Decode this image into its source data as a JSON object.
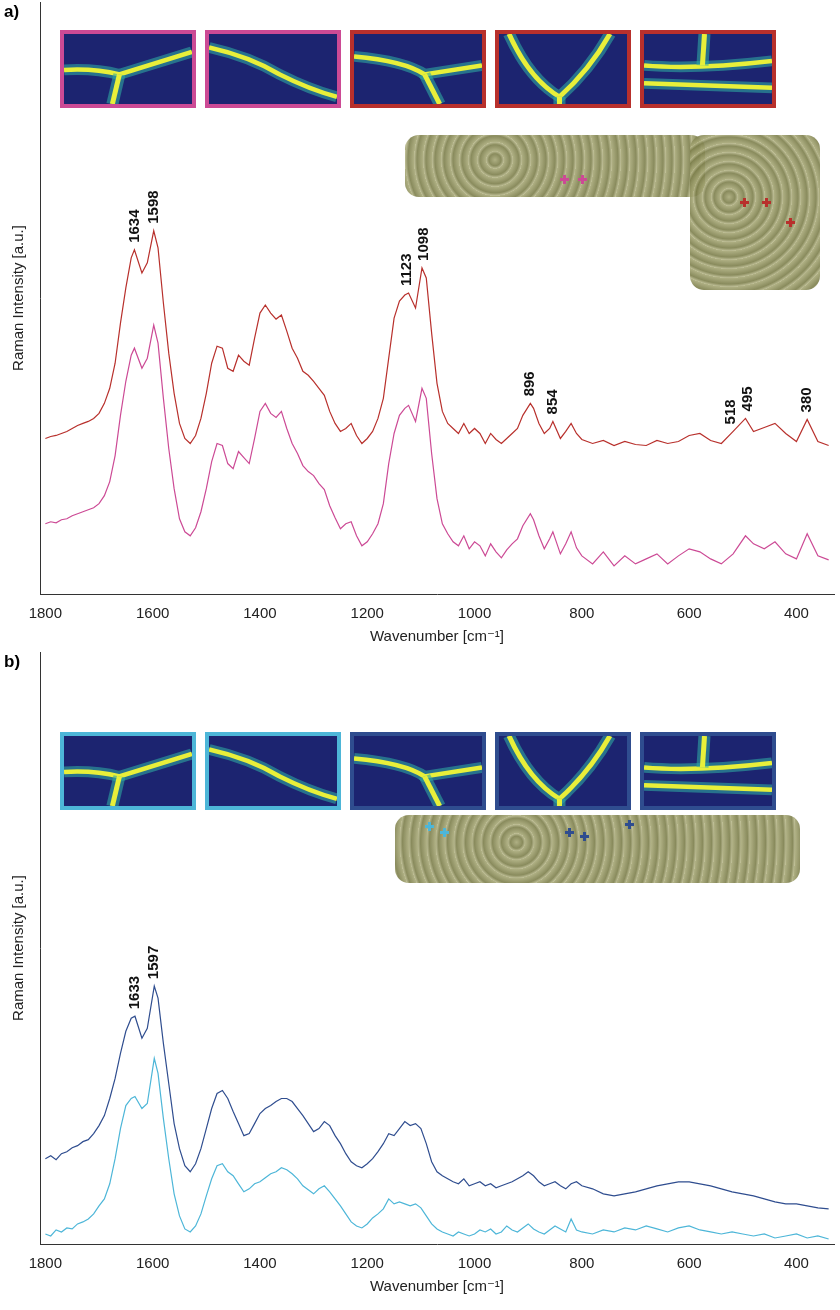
{
  "chart_data": [
    {
      "panel": "a)",
      "type": "line",
      "x_label": "Wavenumber [cm⁻¹]",
      "y_label": "Raman Intensity [a.u.]",
      "xlim": [
        1810,
        330
      ],
      "xticks": [
        1800,
        1600,
        1400,
        1200,
        1000,
        800,
        600,
        400
      ],
      "ylim": [
        0,
        590
      ],
      "tick_labels": "x",
      "grid": false,
      "annotations": [
        1634,
        1598,
        1123,
        1098,
        896,
        854,
        518,
        495,
        380
      ],
      "x": [
        1800,
        1790,
        1780,
        1770,
        1760,
        1750,
        1740,
        1730,
        1720,
        1710,
        1700,
        1690,
        1680,
        1670,
        1660,
        1650,
        1640,
        1634,
        1620,
        1610,
        1598,
        1590,
        1580,
        1570,
        1560,
        1550,
        1540,
        1530,
        1520,
        1510,
        1500,
        1490,
        1480,
        1470,
        1460,
        1450,
        1440,
        1430,
        1420,
        1410,
        1400,
        1390,
        1380,
        1370,
        1360,
        1350,
        1340,
        1330,
        1320,
        1310,
        1300,
        1290,
        1280,
        1270,
        1260,
        1250,
        1240,
        1230,
        1220,
        1210,
        1200,
        1190,
        1180,
        1170,
        1160,
        1150,
        1140,
        1130,
        1123,
        1110,
        1098,
        1090,
        1080,
        1070,
        1060,
        1050,
        1040,
        1030,
        1020,
        1010,
        1000,
        990,
        980,
        970,
        960,
        950,
        940,
        930,
        920,
        910,
        896,
        890,
        880,
        870,
        860,
        854,
        840,
        830,
        820,
        810,
        800,
        780,
        760,
        740,
        720,
        700,
        680,
        660,
        640,
        620,
        600,
        580,
        560,
        540,
        518,
        495,
        480,
        460,
        440,
        420,
        400,
        380,
        360,
        340
      ],
      "series": [
        {
          "color": "#b8302c",
          "values": [
            155,
            157,
            158,
            160,
            162,
            165,
            168,
            170,
            172,
            175,
            180,
            190,
            205,
            230,
            270,
            305,
            335,
            343,
            320,
            330,
            362,
            345,
            290,
            240,
            200,
            170,
            155,
            150,
            158,
            175,
            200,
            230,
            247,
            245,
            225,
            222,
            238,
            232,
            228,
            255,
            280,
            288,
            280,
            274,
            278,
            262,
            245,
            235,
            222,
            218,
            212,
            205,
            198,
            182,
            170,
            162,
            165,
            170,
            158,
            150,
            155,
            162,
            175,
            195,
            235,
            275,
            292,
            298,
            300,
            285,
            325,
            315,
            260,
            210,
            182,
            170,
            165,
            160,
            170,
            160,
            165,
            160,
            150,
            160,
            154,
            150,
            155,
            160,
            165,
            178,
            190,
            185,
            170,
            160,
            165,
            172,
            155,
            162,
            170,
            160,
            154,
            150,
            153,
            148,
            152,
            149,
            148,
            153,
            150,
            152,
            158,
            160,
            153,
            150,
            162,
            175,
            162,
            166,
            170,
            160,
            152,
            174,
            152,
            148
          ]
        },
        {
          "color": "#cc4a95",
          "values": [
            70,
            72,
            71,
            74,
            75,
            78,
            80,
            82,
            84,
            86,
            90,
            98,
            112,
            138,
            178,
            212,
            238,
            245,
            225,
            235,
            268,
            250,
            195,
            145,
            105,
            75,
            62,
            58,
            66,
            82,
            105,
            132,
            150,
            148,
            130,
            125,
            142,
            136,
            130,
            155,
            182,
            190,
            180,
            176,
            182,
            165,
            150,
            140,
            128,
            122,
            118,
            110,
            104,
            88,
            76,
            65,
            70,
            72,
            58,
            48,
            52,
            60,
            70,
            90,
            130,
            160,
            178,
            185,
            188,
            172,
            205,
            195,
            140,
            95,
            70,
            60,
            52,
            48,
            58,
            45,
            52,
            48,
            38,
            50,
            42,
            36,
            44,
            50,
            55,
            68,
            80,
            74,
            58,
            45,
            55,
            62,
            40,
            50,
            62,
            46,
            38,
            30,
            42,
            28,
            38,
            30,
            35,
            40,
            30,
            38,
            45,
            42,
            35,
            30,
            40,
            58,
            50,
            45,
            52,
            40,
            35,
            60,
            38,
            34
          ]
        }
      ]
    },
    {
      "panel": "b)",
      "type": "line",
      "x_label": "Wavenumber [cm⁻¹]",
      "y_label": "Raman Intensity [a.u.]",
      "xlim": [
        1810,
        330
      ],
      "xticks": [
        1800,
        1600,
        1400,
        1200,
        1000,
        800,
        600,
        400
      ],
      "ylim": [
        0,
        590
      ],
      "tick_labels": "x",
      "grid": false,
      "annotations": [
        1633,
        1597
      ],
      "x": [
        1800,
        1790,
        1780,
        1770,
        1760,
        1750,
        1740,
        1730,
        1720,
        1710,
        1700,
        1690,
        1680,
        1670,
        1660,
        1650,
        1640,
        1633,
        1620,
        1610,
        1597,
        1590,
        1580,
        1570,
        1560,
        1550,
        1540,
        1530,
        1520,
        1510,
        1500,
        1490,
        1480,
        1470,
        1460,
        1450,
        1440,
        1430,
        1420,
        1410,
        1400,
        1390,
        1380,
        1370,
        1360,
        1350,
        1340,
        1330,
        1320,
        1310,
        1300,
        1290,
        1280,
        1270,
        1260,
        1250,
        1240,
        1230,
        1220,
        1210,
        1200,
        1190,
        1180,
        1170,
        1160,
        1150,
        1140,
        1130,
        1120,
        1110,
        1100,
        1090,
        1080,
        1070,
        1060,
        1050,
        1040,
        1030,
        1020,
        1010,
        1000,
        990,
        980,
        970,
        960,
        950,
        940,
        930,
        920,
        910,
        900,
        890,
        880,
        870,
        860,
        850,
        840,
        830,
        820,
        810,
        800,
        780,
        760,
        740,
        720,
        700,
        680,
        660,
        640,
        620,
        600,
        580,
        560,
        540,
        520,
        500,
        480,
        460,
        440,
        420,
        400,
        380,
        360,
        340
      ],
      "series": [
        {
          "color": "#2f4d8f",
          "values": [
            85,
            88,
            84,
            90,
            92,
            96,
            98,
            102,
            104,
            110,
            118,
            128,
            145,
            165,
            190,
            212,
            225,
            227,
            205,
            215,
            257,
            245,
            200,
            160,
            120,
            95,
            78,
            72,
            80,
            95,
            115,
            135,
            150,
            153,
            145,
            132,
            120,
            108,
            110,
            120,
            130,
            135,
            138,
            142,
            145,
            145,
            142,
            135,
            128,
            120,
            112,
            115,
            122,
            118,
            108,
            100,
            90,
            82,
            78,
            76,
            80,
            85,
            92,
            100,
            110,
            108,
            115,
            122,
            118,
            120,
            115,
            100,
            82,
            72,
            68,
            65,
            62,
            60,
            65,
            58,
            60,
            62,
            58,
            60,
            56,
            58,
            60,
            62,
            65,
            68,
            72,
            68,
            62,
            58,
            60,
            62,
            58,
            55,
            60,
            62,
            58,
            55,
            50,
            48,
            50,
            52,
            55,
            58,
            60,
            62,
            62,
            60,
            58,
            55,
            52,
            50,
            48,
            45,
            42,
            40,
            40,
            38,
            36,
            35
          ]
        },
        {
          "color": "#4db6d8",
          "values": [
            10,
            8,
            14,
            12,
            16,
            15,
            20,
            22,
            25,
            30,
            38,
            45,
            60,
            85,
            115,
            138,
            145,
            147,
            135,
            140,
            185,
            170,
            125,
            85,
            50,
            28,
            15,
            12,
            18,
            30,
            48,
            65,
            78,
            80,
            72,
            68,
            60,
            52,
            55,
            60,
            62,
            66,
            70,
            72,
            76,
            74,
            70,
            65,
            58,
            54,
            50,
            55,
            58,
            52,
            45,
            38,
            30,
            22,
            18,
            16,
            20,
            26,
            30,
            35,
            45,
            40,
            42,
            40,
            38,
            40,
            36,
            28,
            20,
            15,
            12,
            10,
            8,
            12,
            10,
            8,
            10,
            14,
            12,
            15,
            10,
            12,
            18,
            14,
            12,
            16,
            20,
            15,
            12,
            10,
            14,
            18,
            15,
            12,
            25,
            14,
            12,
            10,
            14,
            12,
            16,
            14,
            18,
            15,
            12,
            16,
            18,
            14,
            12,
            10,
            12,
            10,
            8,
            10,
            6,
            8,
            10,
            6,
            8,
            5
          ]
        }
      ]
    }
  ]
}
